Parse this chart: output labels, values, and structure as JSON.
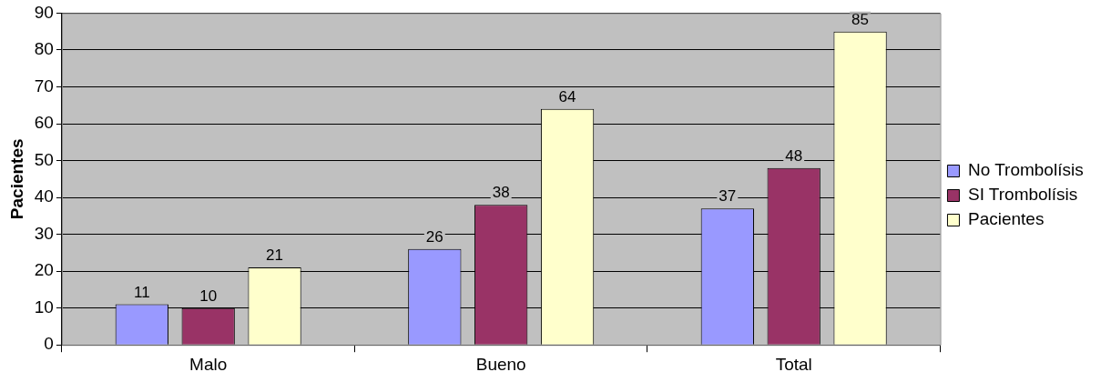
{
  "chart_data": {
    "type": "bar",
    "ylabel": "Pacientes",
    "categories": [
      "Malo",
      "Bueno",
      "Total"
    ],
    "series": [
      {
        "name": "No Trombolísis",
        "color": "#9999ff",
        "values": [
          11,
          26,
          37
        ]
      },
      {
        "name": "SI Trombolísis",
        "color": "#993366",
        "values": [
          10,
          38,
          48
        ]
      },
      {
        "name": "Pacientes",
        "color": "#ffffcc",
        "values": [
          21,
          64,
          85
        ]
      }
    ],
    "ylim": [
      0,
      90
    ],
    "yticks": [
      0,
      10,
      20,
      30,
      40,
      50,
      60,
      70,
      80,
      90
    ],
    "grid": "y",
    "legend": "right",
    "data_labels": true
  }
}
